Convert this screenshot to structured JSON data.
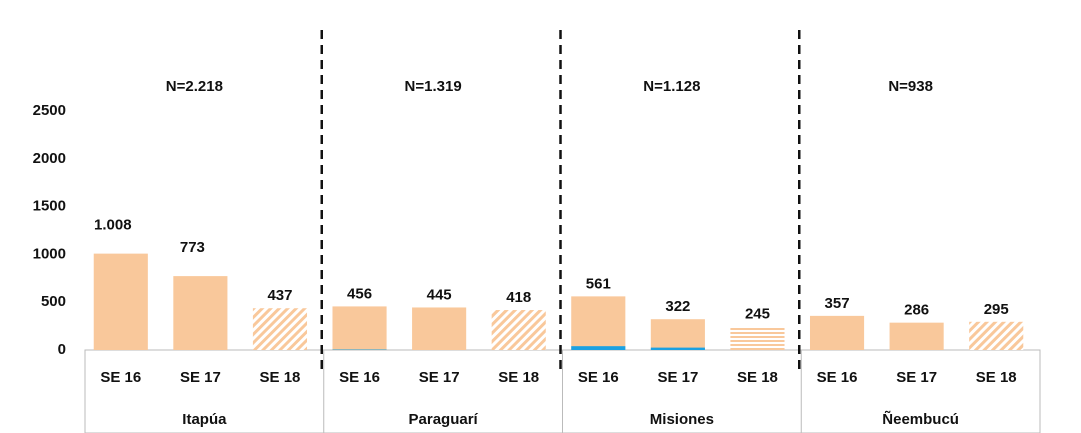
{
  "chart_data": {
    "type": "bar",
    "groups": [
      "Itapúa",
      "Paraguarí",
      "Misiones",
      "Ñeembucú"
    ],
    "group_labels": [
      "N=2.218",
      "N=1.319",
      "N=1.128",
      "N=938"
    ],
    "categories": [
      "SE 16",
      "SE 17",
      "SE 18",
      "SE 16",
      "SE 17",
      "SE 18",
      "SE 16",
      "SE 17",
      "SE 18",
      "SE 16",
      "SE 17",
      "SE 18"
    ],
    "series": [
      {
        "color": "#f9c89b",
        "values": [
          1008,
          773,
          437,
          456,
          445,
          418,
          561,
          322,
          245,
          357,
          286,
          295
        ],
        "value_labels": [
          "1.008",
          "773",
          "437",
          "456",
          "445",
          "418",
          "561",
          "322",
          "245",
          "357",
          "286",
          "295"
        ],
        "pattern": [
          "solid",
          "solid",
          "diagonal",
          "solid",
          "solid",
          "diagonal",
          "solid",
          "solid",
          "horizontal",
          "solid",
          "solid",
          "diagonal"
        ]
      },
      {
        "color": "#1ba1e2",
        "values": [
          0,
          0,
          0,
          5,
          0,
          0,
          40,
          25,
          0,
          0,
          0,
          0
        ]
      }
    ],
    "ylim": [
      0,
      2500
    ],
    "yticks": [
      0,
      500,
      1000,
      1500,
      2000,
      2500
    ]
  }
}
